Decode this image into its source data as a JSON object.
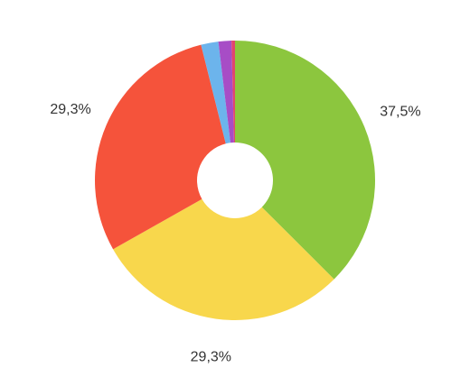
{
  "chart_data": {
    "type": "donut",
    "values": [
      37.5,
      29.3,
      29.3,
      2.0,
      1.5,
      0.4
    ],
    "value_labels": [
      "37,5%",
      "29,3%",
      "29,3%",
      null,
      null,
      null
    ],
    "colors": [
      "#8cc63e",
      "#f8d74c",
      "#f5533b",
      "#6cb4ec",
      "#a74dc6",
      "#e2456f"
    ]
  }
}
